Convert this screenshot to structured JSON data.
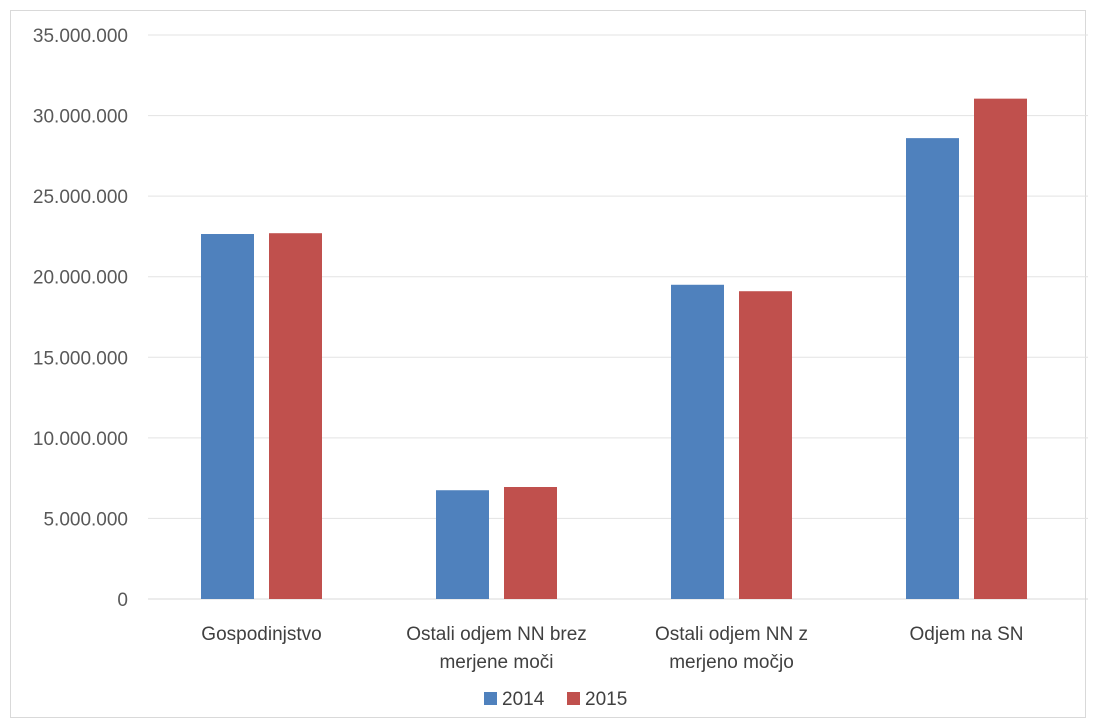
{
  "chart_data": {
    "type": "bar",
    "title": "",
    "xlabel": "",
    "ylabel": "",
    "categories": [
      [
        "Gospodinjstvo"
      ],
      [
        "Ostali odjem NN brez",
        "merjene moči"
      ],
      [
        "Ostali odjem NN z",
        "merjeno močjo"
      ],
      [
        "Odjem na SN"
      ]
    ],
    "series": [
      {
        "name": "2014",
        "color": "#4f81bd",
        "values": [
          22650000,
          6750000,
          19500000,
          28600000
        ]
      },
      {
        "name": "2015",
        "color": "#c0504d",
        "values": [
          22700000,
          6950000,
          19100000,
          31050000
        ]
      }
    ],
    "ylim": [
      0,
      35000000
    ],
    "yticks": [
      "0",
      "5.000.000",
      "10.000.000",
      "15.000.000",
      "20.000.000",
      "25.000.000",
      "30.000.000",
      "35.000.000"
    ],
    "grid": true,
    "legend_position": "bottom"
  }
}
